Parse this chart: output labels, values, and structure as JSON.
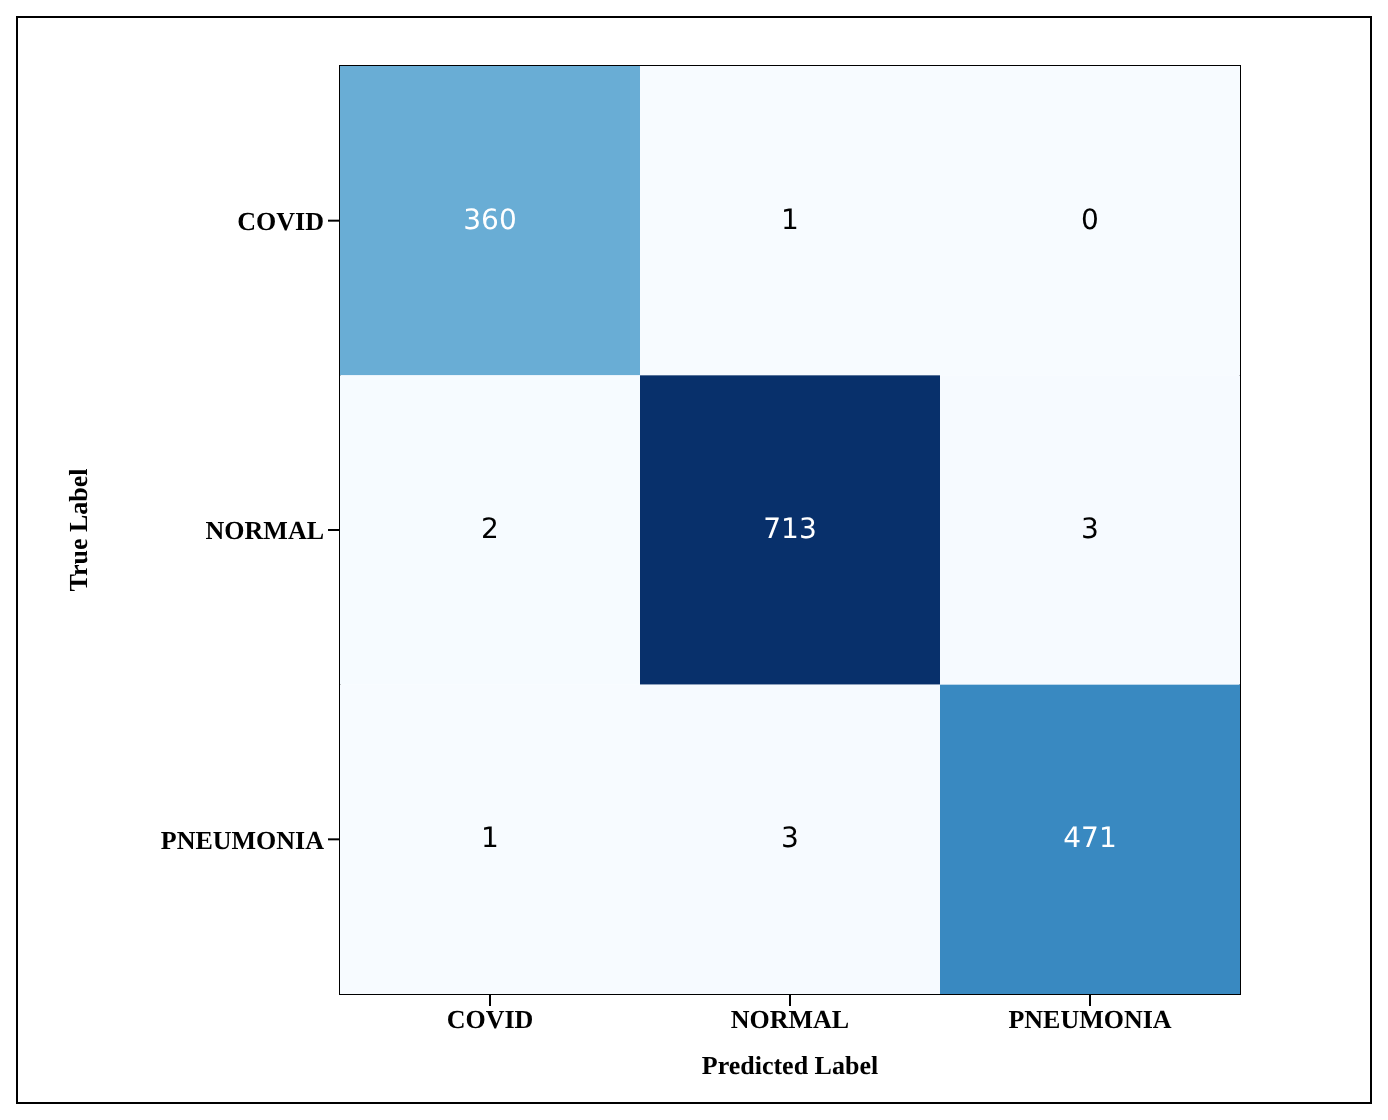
{
  "chart_data": {
    "type": "heatmap",
    "data_labels": true,
    "xlabel": "Predicted Label",
    "ylabel": "True Label",
    "categories": [
      "COVID",
      "NORMAL",
      "PNEUMONIA"
    ],
    "y_categories": [
      "COVID",
      "NORMAL",
      "PNEUMONIA"
    ],
    "cells": [
      [
        360,
        1,
        0
      ],
      [
        2,
        713,
        3
      ],
      [
        1,
        3,
        471
      ]
    ]
  }
}
